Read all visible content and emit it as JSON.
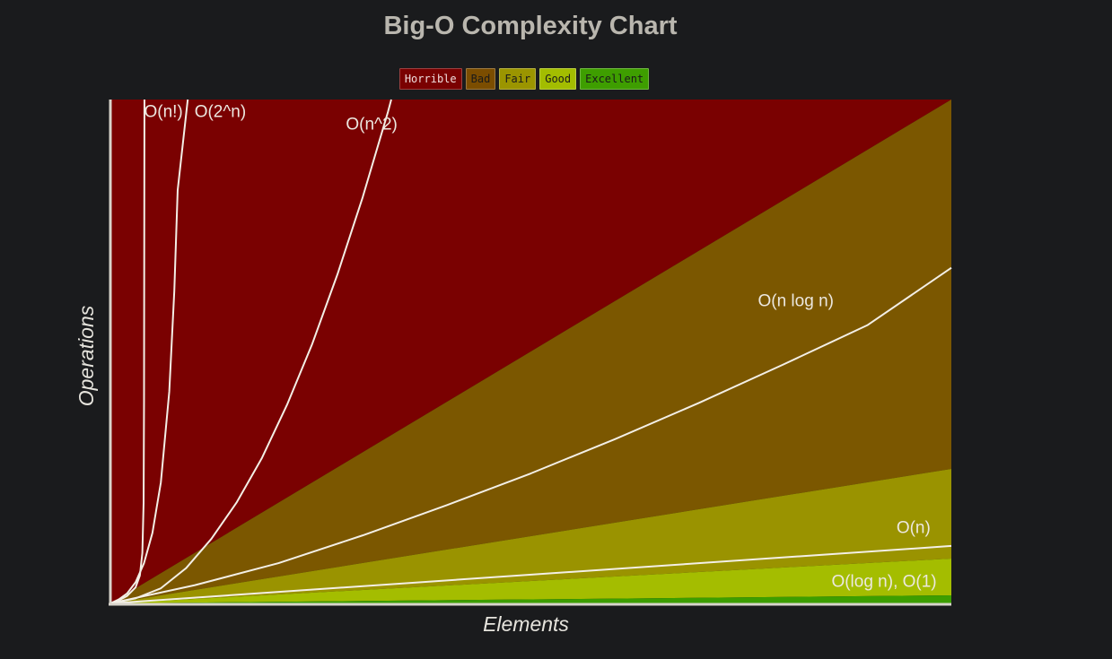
{
  "chart_data": {
    "type": "area",
    "title": "Big-O Complexity Chart",
    "xlabel": "Elements",
    "ylabel": "Operations",
    "xlim": [
      0,
      100
    ],
    "ylim": [
      0,
      100
    ],
    "grid": false,
    "legend_placement": "top-center",
    "legend": [
      {
        "label": "Horrible",
        "color": "#7a0101",
        "text_color": "#f0dede"
      },
      {
        "label": "Bad",
        "color": "#7b4d00",
        "text_color": "#1a1a1a"
      },
      {
        "label": "Fair",
        "color": "#9b9500",
        "text_color": "#1a1a1a"
      },
      {
        "label": "Good",
        "color": "#a3bd00",
        "text_color": "#1a1a1a"
      },
      {
        "label": "Excellent",
        "color": "#3e9e00",
        "text_color": "#1a1a1a"
      }
    ],
    "regions": [
      {
        "name": "Horrible",
        "color": "#7a0101",
        "lower": {
          "type": "linear",
          "slope": 1.0
        },
        "upper": "top"
      },
      {
        "name": "Bad",
        "color": "#7b5700",
        "lower": {
          "type": "linear",
          "slope": 0.267
        },
        "upper": {
          "type": "linear",
          "slope": 1.0
        }
      },
      {
        "name": "Fair",
        "color": "#9a9300",
        "lower": {
          "type": "linear",
          "slope": 0.089
        },
        "upper": {
          "type": "linear",
          "slope": 0.267
        }
      },
      {
        "name": "Good",
        "color": "#a4bd00",
        "lower": {
          "type": "linear",
          "slope": 0.016
        },
        "upper": {
          "type": "linear",
          "slope": 0.089
        }
      },
      {
        "name": "Excellent",
        "color": "#3d9e00",
        "lower": "bottom",
        "upper": {
          "type": "linear",
          "slope": 0.016
        }
      }
    ],
    "series": [
      {
        "name": "O(n!)",
        "points": [
          [
            0,
            0
          ],
          [
            1,
            0.6
          ],
          [
            2,
            1.5
          ],
          [
            3,
            3.2
          ],
          [
            3.5,
            5.5
          ],
          [
            3.8,
            10
          ],
          [
            3.95,
            20
          ],
          [
            4.0,
            40
          ],
          [
            4.05,
            100
          ]
        ],
        "label_pos": [
          4.0,
          96.5
        ]
      },
      {
        "name": "O(2^n)",
        "points": [
          [
            0,
            0
          ],
          [
            1,
            0.8
          ],
          [
            2,
            2.0
          ],
          [
            3,
            4.2
          ],
          [
            4,
            8.0
          ],
          [
            5,
            14
          ],
          [
            6,
            24
          ],
          [
            7,
            42
          ],
          [
            7.6,
            62
          ],
          [
            8.0,
            82
          ],
          [
            9.2,
            100
          ]
        ],
        "label_pos": [
          10.0,
          96.5
        ]
      },
      {
        "name": "O(n^2)",
        "points": [
          [
            0,
            0
          ],
          [
            3,
            1.0
          ],
          [
            6,
            3.0
          ],
          [
            9,
            7.0
          ],
          [
            12,
            12.8
          ],
          [
            15,
            20.0
          ],
          [
            18,
            28.8
          ],
          [
            21,
            39.4
          ],
          [
            24,
            51.5
          ],
          [
            27,
            65.3
          ],
          [
            30,
            80.6
          ],
          [
            33,
            97.5
          ],
          [
            33.4,
            100
          ]
        ],
        "label_pos": [
          28.0,
          94.0
        ]
      },
      {
        "name": "O(n log n)",
        "points": [
          [
            0,
            0
          ],
          [
            10,
            3.6
          ],
          [
            20,
            8.0
          ],
          [
            30,
            13.5
          ],
          [
            40,
            19.5
          ],
          [
            50,
            25.8
          ],
          [
            60,
            32.6
          ],
          [
            70,
            39.8
          ],
          [
            80,
            47.4
          ],
          [
            90,
            55.2
          ],
          [
            100,
            66.6
          ]
        ],
        "label_pos": [
          77.0,
          59.0
        ]
      },
      {
        "name": "O(n)",
        "points": [
          [
            0,
            0
          ],
          [
            100,
            11.4
          ]
        ],
        "label_pos": [
          95.5,
          14.0
        ]
      },
      {
        "name": "O(log n), O(1)",
        "points": [],
        "label_pos": [
          92.0,
          3.3
        ]
      }
    ]
  }
}
